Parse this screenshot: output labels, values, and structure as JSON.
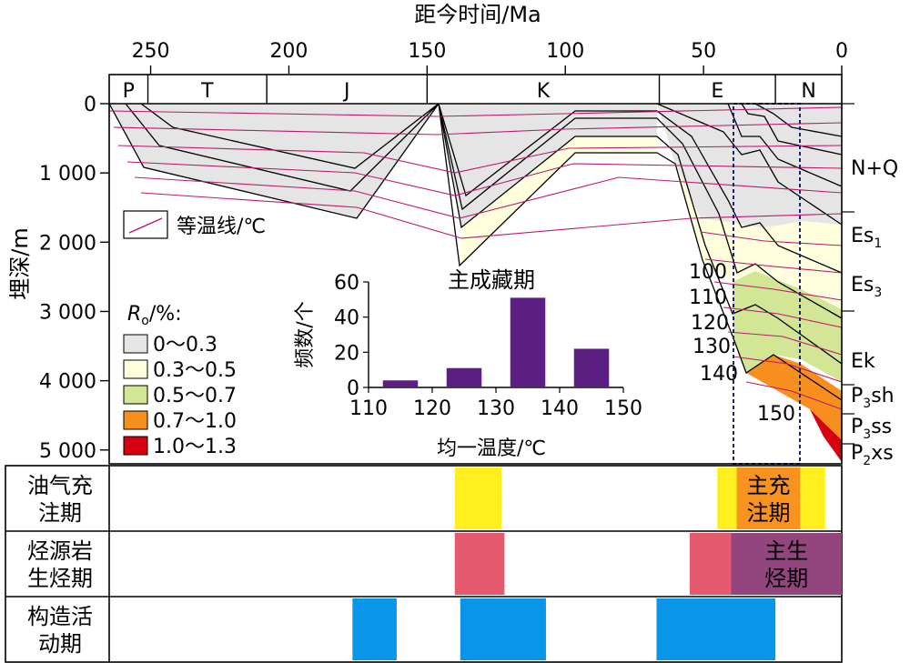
{
  "colors": {
    "bg": "#ffffff",
    "ro_0": "#e5e5e5",
    "ro_1": "#ffffdd",
    "ro_2": "#d2e695",
    "ro_3": "#f78f1e",
    "ro_4": "#d7000f",
    "isotherm": "#c0186f",
    "bar": "#5b1f83",
    "charging": "#ffef1f",
    "main_charging": "#f7931e",
    "gen": "#e55a6e",
    "main_gen": "#93457e",
    "tectonic": "#0a96e8",
    "dashed_box": "#1a2273"
  },
  "chart_data": [
    {
      "type": "area",
      "title": "",
      "xlabel": "距今时间/Ma",
      "ylabel": "埋深/m",
      "xlim": [
        265,
        0
      ],
      "ylim": [
        5200,
        0
      ],
      "x_ticks": [
        250,
        200,
        150,
        100,
        50,
        0
      ],
      "y_ticks": [
        {
          "value": 0,
          "label": "0"
        },
        {
          "value": 1000,
          "label": "1 000"
        },
        {
          "value": 2000,
          "label": "2 000"
        },
        {
          "value": 3000,
          "label": "3 000"
        },
        {
          "value": 4000,
          "label": "4 000"
        },
        {
          "value": 5000,
          "label": "5 000"
        }
      ],
      "periods": [
        {
          "label": "P",
          "start": 265,
          "end": 251
        },
        {
          "label": "T",
          "start": 251,
          "end": 208
        },
        {
          "label": "J",
          "start": 208,
          "end": 150
        },
        {
          "label": "K",
          "start": 150,
          "end": 66
        },
        {
          "label": "E",
          "start": 66,
          "end": 24
        },
        {
          "label": "N",
          "start": 24,
          "end": 0
        }
      ],
      "ro_legend": {
        "title": "R",
        "title_sub": "o",
        "title_suffix": "/%:",
        "items": [
          {
            "label": "0～0.3",
            "color": "#e5e5e5"
          },
          {
            "label": "0.3～0.5",
            "color": "#ffffdd"
          },
          {
            "label": "0.5～0.7",
            "color": "#d2e695"
          },
          {
            "label": "0.7～1.0",
            "color": "#f78f1e"
          },
          {
            "label": "1.0～1.3",
            "color": "#d7000f"
          }
        ]
      },
      "isotherm_legend": "等温线/℃",
      "isotherm_labels": [
        "100",
        "110",
        "120",
        "130",
        "140",
        "150"
      ],
      "strata_labels": [
        {
          "main": "N+Q",
          "sub": "",
          "tail": ""
        },
        {
          "main": "Es",
          "sub": "1",
          "tail": ""
        },
        {
          "main": "Es",
          "sub": "3",
          "tail": ""
        },
        {
          "main": "Ek",
          "sub": "",
          "tail": ""
        },
        {
          "main": "P",
          "sub": "3",
          "tail": "sh"
        },
        {
          "main": "P",
          "sub": "3",
          "tail": "ss"
        },
        {
          "main": "P",
          "sub": "2",
          "tail": "xs"
        }
      ],
      "main_window_ma": [
        38,
        15
      ]
    },
    {
      "type": "bar",
      "title": "主成藏期",
      "xlabel": "均一温度/℃",
      "ylabel": "频数/个",
      "categories": [
        "110~120",
        "120~130",
        "130~140",
        "140~150"
      ],
      "bin_centers": [
        115,
        125,
        135,
        145
      ],
      "values": [
        4,
        11,
        51,
        22
      ],
      "xlim": [
        110,
        150
      ],
      "ylim": [
        0,
        60
      ],
      "x_ticks": [
        110,
        120,
        130,
        140,
        150
      ],
      "y_ticks": [
        0,
        20,
        40,
        60
      ]
    }
  ],
  "event_rows": [
    {
      "label_lines": [
        "油气充",
        "注期"
      ],
      "bars": [
        {
          "start": 140,
          "end": 123,
          "kind": "charging"
        },
        {
          "start": 45,
          "end": 6,
          "kind": "charging"
        },
        {
          "start": 38,
          "end": 15,
          "kind": "main_charging",
          "label_lines": [
            "主充",
            "注期"
          ]
        }
      ]
    },
    {
      "label_lines": [
        "烃源岩",
        "生烃期"
      ],
      "bars": [
        {
          "start": 140,
          "end": 122,
          "kind": "gen"
        },
        {
          "start": 55,
          "end": 40,
          "kind": "gen"
        },
        {
          "start": 40,
          "end": 0,
          "kind": "main_gen",
          "label_lines": [
            "主生",
            "烃期"
          ]
        }
      ]
    },
    {
      "label_lines": [
        "构造活",
        "动期"
      ],
      "bars": [
        {
          "start": 177,
          "end": 161,
          "kind": "tectonic"
        },
        {
          "start": 138,
          "end": 107,
          "kind": "tectonic"
        },
        {
          "start": 67,
          "end": 24,
          "kind": "tectonic"
        }
      ]
    }
  ]
}
